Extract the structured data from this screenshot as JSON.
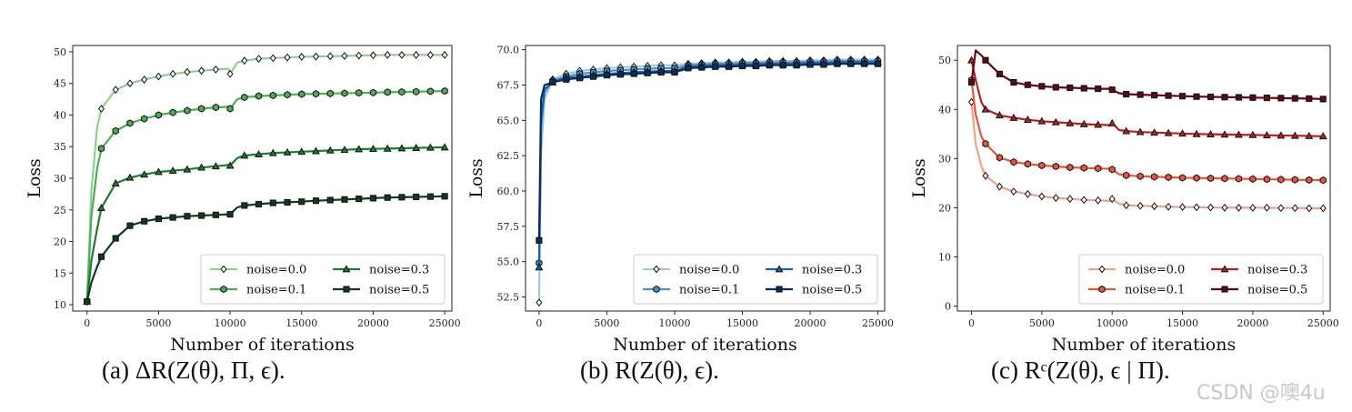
{
  "chart_data": [
    {
      "id": "a",
      "type": "line",
      "caption_label": "(a)",
      "caption_math": "ΔR(Z(θ), Π, ϵ).",
      "xlabel": "Number of iterations",
      "ylabel": "Loss",
      "xlim": [
        -1000,
        25500
      ],
      "ylim": [
        9,
        51
      ],
      "xticks": [
        0,
        5000,
        10000,
        15000,
        20000,
        25000
      ],
      "yticks": [
        10,
        15,
        20,
        25,
        30,
        35,
        40,
        45,
        50
      ],
      "legend_position": "lower-right",
      "series": [
        {
          "name": "noise=0.0",
          "color": "#8fd08f",
          "marker": "diamond",
          "x": [
            0,
            300,
            700,
            1000,
            2000,
            3000,
            4000,
            5000,
            6000,
            7000,
            8000,
            9000,
            9900,
            10000,
            10500,
            11000,
            12000,
            13000,
            14000,
            15000,
            16000,
            17000,
            18000,
            19000,
            20000,
            21000,
            22000,
            23000,
            24000,
            25000
          ],
          "y": [
            10.5,
            28,
            38,
            41,
            44,
            45,
            45.6,
            46.1,
            46.5,
            46.8,
            47.0,
            47.2,
            47.3,
            46.5,
            48.3,
            48.6,
            48.9,
            49.0,
            49.1,
            49.2,
            49.25,
            49.3,
            49.35,
            49.4,
            49.45,
            49.5,
            49.5,
            49.5,
            49.5,
            49.5
          ]
        },
        {
          "name": "noise=0.1",
          "color": "#4eac5b",
          "marker": "hexagon",
          "x": [
            0,
            300,
            700,
            1000,
            2000,
            3000,
            4000,
            5000,
            6000,
            7000,
            8000,
            9000,
            9900,
            10000,
            10500,
            11000,
            12000,
            13000,
            14000,
            15000,
            16000,
            17000,
            18000,
            19000,
            20000,
            21000,
            22000,
            23000,
            24000,
            25000
          ],
          "y": [
            10.5,
            24,
            31.5,
            34.7,
            37.5,
            38.7,
            39.4,
            40.0,
            40.4,
            40.7,
            41.0,
            41.2,
            41.3,
            41.0,
            42.5,
            42.8,
            43.0,
            43.1,
            43.2,
            43.3,
            43.35,
            43.4,
            43.45,
            43.5,
            43.55,
            43.6,
            43.65,
            43.7,
            43.75,
            43.8
          ]
        },
        {
          "name": "noise=0.3",
          "color": "#1e7a34",
          "marker": "triangle",
          "x": [
            0,
            300,
            700,
            1000,
            2000,
            3000,
            4000,
            5000,
            6000,
            7000,
            8000,
            9000,
            9900,
            10000,
            10500,
            11000,
            12000,
            13000,
            14000,
            15000,
            16000,
            17000,
            18000,
            19000,
            20000,
            21000,
            22000,
            23000,
            24000,
            25000
          ],
          "y": [
            10.5,
            17,
            22,
            25.3,
            29.2,
            30.1,
            30.6,
            31.0,
            31.2,
            31.4,
            31.7,
            31.9,
            32.1,
            32.0,
            33.2,
            33.6,
            33.8,
            34.0,
            34.1,
            34.2,
            34.3,
            34.4,
            34.5,
            34.6,
            34.65,
            34.7,
            34.75,
            34.8,
            34.85,
            34.9
          ]
        },
        {
          "name": "noise=0.5",
          "color": "#0f3b1c",
          "marker": "square",
          "x": [
            0,
            300,
            700,
            1000,
            2000,
            3000,
            4000,
            5000,
            6000,
            7000,
            8000,
            9000,
            9900,
            10000,
            10500,
            11000,
            12000,
            13000,
            14000,
            15000,
            16000,
            17000,
            18000,
            19000,
            20000,
            21000,
            22000,
            23000,
            24000,
            25000
          ],
          "y": [
            10.5,
            13.5,
            16,
            17.6,
            20.5,
            22.5,
            23.2,
            23.6,
            23.8,
            24.0,
            24.1,
            24.2,
            24.3,
            24.3,
            25.4,
            25.7,
            25.9,
            26.1,
            26.2,
            26.3,
            26.45,
            26.55,
            26.65,
            26.75,
            26.85,
            26.95,
            27.0,
            27.05,
            27.1,
            27.15
          ]
        }
      ]
    },
    {
      "id": "b",
      "type": "line",
      "caption_label": "(b)",
      "caption_math": "R(Z(θ), ϵ).",
      "xlabel": "Number of iterations",
      "ylabel": "Loss",
      "xlim": [
        -1000,
        25500
      ],
      "ylim": [
        51.5,
        70.3
      ],
      "xticks": [
        0,
        5000,
        10000,
        15000,
        20000,
        25000
      ],
      "yticks": [
        52.5,
        55.0,
        57.5,
        60.0,
        62.5,
        65.0,
        67.5,
        70.0
      ],
      "ytick_labels": [
        "52.5",
        "55.0",
        "57.5",
        "60.0",
        "62.5",
        "65.0",
        "67.5",
        "70.0"
      ],
      "legend_position": "lower-right",
      "series": [
        {
          "name": "noise=0.0",
          "color": "#9ecae1",
          "marker": "diamond",
          "x": [
            0,
            150,
            400,
            1000,
            2000,
            3000,
            4000,
            5000,
            6000,
            7000,
            8000,
            9000,
            10000,
            11000,
            12000,
            13000,
            14000,
            15000,
            16000,
            17000,
            18000,
            19000,
            20000,
            21000,
            22000,
            23000,
            24000,
            25000
          ],
          "y": [
            52.1,
            62.5,
            66.5,
            67.9,
            68.3,
            68.5,
            68.6,
            68.7,
            68.75,
            68.8,
            68.85,
            68.9,
            68.9,
            69.0,
            69.05,
            69.1,
            69.1,
            69.15,
            69.15,
            69.2,
            69.2,
            69.2,
            69.25,
            69.25,
            69.3,
            69.3,
            69.3,
            69.3
          ]
        },
        {
          "name": "noise=0.1",
          "color": "#4b90c8",
          "marker": "hexagon",
          "x": [
            0,
            150,
            400,
            1000,
            2000,
            3000,
            4000,
            5000,
            6000,
            7000,
            8000,
            9000,
            10000,
            11000,
            12000,
            13000,
            14000,
            15000,
            16000,
            17000,
            18000,
            19000,
            20000,
            21000,
            22000,
            23000,
            24000,
            25000
          ],
          "y": [
            54.9,
            64.5,
            67.0,
            67.8,
            68.1,
            68.3,
            68.4,
            68.5,
            68.55,
            68.6,
            68.65,
            68.7,
            68.7,
            68.9,
            68.95,
            69.0,
            69.0,
            69.05,
            69.05,
            69.1,
            69.1,
            69.1,
            69.15,
            69.15,
            69.2,
            69.2,
            69.2,
            69.2
          ]
        },
        {
          "name": "noise=0.3",
          "color": "#1f5fa6",
          "marker": "triangle",
          "x": [
            0,
            150,
            400,
            1000,
            2000,
            3000,
            4000,
            5000,
            6000,
            7000,
            8000,
            9000,
            10000,
            11000,
            12000,
            13000,
            14000,
            15000,
            16000,
            17000,
            18000,
            19000,
            20000,
            21000,
            22000,
            23000,
            24000,
            25000
          ],
          "y": [
            54.6,
            65.0,
            67.2,
            67.7,
            68.0,
            68.1,
            68.2,
            68.3,
            68.35,
            68.4,
            68.45,
            68.5,
            68.5,
            68.8,
            68.85,
            68.9,
            68.9,
            68.95,
            68.95,
            69.0,
            69.0,
            69.0,
            69.05,
            69.05,
            69.1,
            69.1,
            69.1,
            69.1
          ]
        },
        {
          "name": "noise=0.5",
          "color": "#0b2d5b",
          "marker": "square",
          "x": [
            0,
            150,
            400,
            1000,
            2000,
            3000,
            4000,
            5000,
            6000,
            7000,
            8000,
            9000,
            10000,
            11000,
            12000,
            13000,
            14000,
            15000,
            16000,
            17000,
            18000,
            19000,
            20000,
            21000,
            22000,
            23000,
            24000,
            25000
          ],
          "y": [
            56.5,
            66.5,
            67.5,
            67.7,
            67.9,
            68.0,
            68.1,
            68.2,
            68.25,
            68.3,
            68.35,
            68.4,
            68.4,
            68.7,
            68.75,
            68.8,
            68.8,
            68.85,
            68.85,
            68.9,
            68.9,
            68.9,
            68.95,
            68.95,
            69.0,
            69.0,
            69.0,
            69.0
          ]
        }
      ]
    },
    {
      "id": "c",
      "type": "line",
      "caption_label": "(c)",
      "caption_math": "Rᶜ(Z(θ), ϵ | Π).",
      "xlabel": "Number of iterations",
      "ylabel": "Loss",
      "xlim": [
        -1000,
        25500
      ],
      "ylim": [
        -1,
        53
      ],
      "xticks": [
        0,
        5000,
        10000,
        15000,
        20000,
        25000
      ],
      "yticks": [
        0,
        10,
        20,
        30,
        40,
        50
      ],
      "legend_position": "lower-right",
      "series": [
        {
          "name": "noise=0.0",
          "color": "#f4a084",
          "marker": "diamond",
          "x": [
            0,
            300,
            700,
            1000,
            2000,
            3000,
            4000,
            5000,
            6000,
            7000,
            8000,
            9000,
            9900,
            10000,
            10500,
            11000,
            12000,
            13000,
            14000,
            15000,
            16000,
            17000,
            18000,
            19000,
            20000,
            21000,
            22000,
            23000,
            24000,
            25000
          ],
          "y": [
            41.5,
            33,
            28.5,
            26.5,
            24.3,
            23.3,
            22.8,
            22.3,
            22.0,
            21.8,
            21.6,
            21.5,
            21.4,
            21.8,
            20.8,
            20.5,
            20.4,
            20.3,
            20.2,
            20.15,
            20.1,
            20.05,
            20.0,
            20.0,
            20.0,
            20.0,
            19.95,
            19.95,
            19.9,
            19.9
          ]
        },
        {
          "name": "noise=0.1",
          "color": "#e8553f",
          "marker": "hexagon",
          "x": [
            0,
            300,
            700,
            1000,
            2000,
            3000,
            4000,
            5000,
            6000,
            7000,
            8000,
            9000,
            9900,
            10000,
            10500,
            11000,
            12000,
            13000,
            14000,
            15000,
            16000,
            17000,
            18000,
            19000,
            20000,
            21000,
            22000,
            23000,
            24000,
            25000
          ],
          "y": [
            46,
            39,
            34.5,
            33,
            30.2,
            29.3,
            28.9,
            28.6,
            28.4,
            28.2,
            28.1,
            28.0,
            27.9,
            27.8,
            26.8,
            26.6,
            26.4,
            26.3,
            26.2,
            26.1,
            26.05,
            26.0,
            25.95,
            25.9,
            25.85,
            25.8,
            25.75,
            25.7,
            25.65,
            25.6
          ]
        },
        {
          "name": "noise=0.3",
          "color": "#b8211f",
          "marker": "triangle",
          "x": [
            0,
            300,
            700,
            1000,
            2000,
            3000,
            4000,
            5000,
            6000,
            7000,
            8000,
            9000,
            9900,
            10000,
            10500,
            11000,
            12000,
            13000,
            14000,
            15000,
            16000,
            17000,
            18000,
            19000,
            20000,
            21000,
            22000,
            23000,
            24000,
            25000
          ],
          "y": [
            50,
            46,
            41.5,
            40,
            38.8,
            38.3,
            37.9,
            37.6,
            37.4,
            37.2,
            37.0,
            36.9,
            36.8,
            37.2,
            35.8,
            35.6,
            35.4,
            35.3,
            35.2,
            35.1,
            35.0,
            34.95,
            34.9,
            34.85,
            34.8,
            34.75,
            34.7,
            34.65,
            34.6,
            34.55
          ]
        },
        {
          "name": "noise=0.5",
          "color": "#5c0a13",
          "marker": "square",
          "x": [
            0,
            300,
            700,
            1000,
            2000,
            3000,
            4000,
            5000,
            6000,
            7000,
            8000,
            9000,
            9900,
            10000,
            10500,
            11000,
            12000,
            13000,
            14000,
            15000,
            16000,
            17000,
            18000,
            19000,
            20000,
            21000,
            22000,
            23000,
            24000,
            25000
          ],
          "y": [
            45.5,
            52,
            51,
            50,
            47.2,
            45.5,
            45.0,
            44.7,
            44.5,
            44.4,
            44.3,
            44.2,
            44.2,
            44.0,
            43.3,
            43.1,
            43.0,
            42.9,
            42.8,
            42.7,
            42.6,
            42.55,
            42.5,
            42.45,
            42.4,
            42.35,
            42.3,
            42.25,
            42.2,
            42.1
          ]
        }
      ]
    }
  ],
  "watermark": "CSDN @噢4u"
}
